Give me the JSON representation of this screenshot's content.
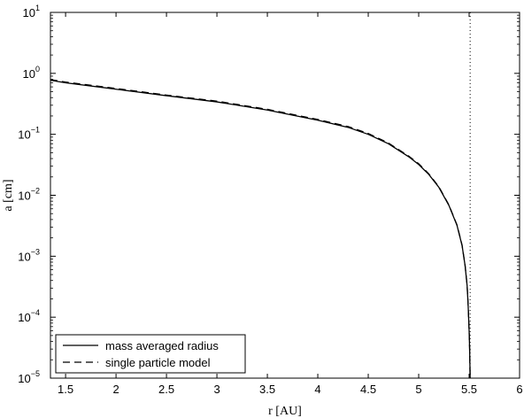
{
  "chart_data": {
    "type": "line",
    "xlabel": "r [AU]",
    "ylabel": "a [cm]",
    "xlim": [
      1.35,
      6
    ],
    "ylim": [
      1e-05,
      10
    ],
    "yscale": "log",
    "grid": false,
    "legend_position": "bottom-left",
    "x_ticks": [
      1.5,
      2,
      2.5,
      3,
      3.5,
      4,
      4.5,
      5,
      5.5,
      6
    ],
    "x_tick_labels": [
      "1.5",
      "2",
      "2.5",
      "3",
      "3.5",
      "4",
      "4.5",
      "5",
      "5.5",
      "6"
    ],
    "y_ticks": [
      1e-05,
      0.0001,
      0.001,
      0.01,
      0.1,
      1,
      10
    ],
    "y_tick_labels": [
      {
        "base": "10",
        "exp": "−5"
      },
      {
        "base": "10",
        "exp": "−4"
      },
      {
        "base": "10",
        "exp": "−3"
      },
      {
        "base": "10",
        "exp": "−2"
      },
      {
        "base": "10",
        "exp": "−1"
      },
      {
        "base": "10",
        "exp": "0"
      },
      {
        "base": "10",
        "exp": "1"
      }
    ],
    "vertical_reference_line": {
      "x": 5.51,
      "style": "dotted"
    },
    "series": [
      {
        "name": "mass averaged radius",
        "style": "solid",
        "color": "#000000",
        "x": [
          1.35,
          1.5,
          2.0,
          2.5,
          3.0,
          3.5,
          4.0,
          4.3,
          4.5,
          4.7,
          4.9,
          5.0,
          5.1,
          5.2,
          5.3,
          5.38,
          5.43,
          5.46,
          5.48,
          5.49,
          5.5,
          5.505,
          5.51
        ],
        "y": [
          0.77,
          0.7,
          0.55,
          0.43,
          0.34,
          0.25,
          0.17,
          0.13,
          0.1,
          0.07,
          0.043,
          0.032,
          0.022,
          0.0135,
          0.0068,
          0.0032,
          0.0015,
          0.0007,
          0.00033,
          0.00016,
          6e-05,
          3e-05,
          1e-05
        ]
      },
      {
        "name": "single particle model",
        "style": "dashed",
        "color": "#000000",
        "x": [
          1.35,
          1.5,
          2.0,
          2.5,
          3.0,
          3.5,
          4.0,
          4.3,
          4.5,
          4.7,
          4.9,
          5.0,
          5.1,
          5.2,
          5.3,
          5.38,
          5.43,
          5.46,
          5.48,
          5.49,
          5.5,
          5.505,
          5.51
        ],
        "y": [
          0.79,
          0.72,
          0.565,
          0.44,
          0.35,
          0.257,
          0.175,
          0.134,
          0.103,
          0.072,
          0.044,
          0.033,
          0.0225,
          0.0138,
          0.0069,
          0.00325,
          0.00152,
          0.00071,
          0.000335,
          0.000162,
          6.1e-05,
          3e-05,
          1e-05
        ]
      }
    ]
  }
}
